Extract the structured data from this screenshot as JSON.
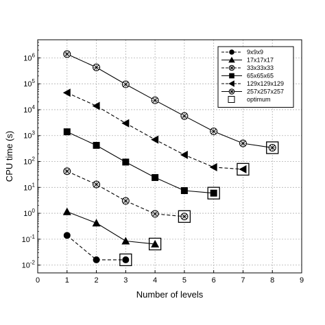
{
  "chart_data": {
    "type": "line",
    "xlabel": "Number of levels",
    "ylabel": "CPU time (s)",
    "x_ticks": [
      "0",
      "1",
      "2",
      "3",
      "4",
      "5",
      "6",
      "7",
      "8",
      "9"
    ],
    "xlim": [
      0,
      9
    ],
    "ylim": [
      0.005,
      5000000
    ],
    "y_scale": "log",
    "y_tick_values": [
      0.01,
      0.1,
      1,
      10,
      100,
      1000,
      10000,
      100000,
      1000000
    ],
    "grid": true,
    "legend_position": "top-right",
    "series": [
      {
        "name": "9x9x9",
        "marker": "circle",
        "dash": true,
        "x": [
          1,
          2,
          3
        ],
        "y": [
          0.14,
          0.016,
          0.016
        ]
      },
      {
        "name": "17x17x17",
        "marker": "triangle-up",
        "dash": false,
        "x": [
          1,
          2,
          3,
          4
        ],
        "y": [
          1.15,
          0.42,
          0.085,
          0.065
        ]
      },
      {
        "name": "33x33x33",
        "marker": "x-circle",
        "dash": true,
        "x": [
          1,
          2,
          3,
          4,
          5
        ],
        "y": [
          42,
          13,
          3.0,
          0.95,
          0.75
        ]
      },
      {
        "name": "65x65x65",
        "marker": "square",
        "dash": false,
        "x": [
          1,
          2,
          3,
          4,
          5,
          6
        ],
        "y": [
          1400,
          420,
          95,
          24,
          7.5,
          6.0
        ]
      },
      {
        "name": "129x129x129",
        "marker": "triangle-left",
        "dash": true,
        "x": [
          1,
          2,
          3,
          4,
          5,
          6,
          7
        ],
        "y": [
          45000,
          14000,
          3000,
          700,
          180,
          60,
          50
        ]
      },
      {
        "name": "257x257x257",
        "marker": "x-circle",
        "dash": false,
        "x": [
          1,
          2,
          3,
          4,
          5,
          6,
          7,
          8
        ],
        "y": [
          1400000,
          430000,
          95000,
          23000,
          5700,
          1450,
          500,
          340
        ]
      }
    ],
    "optimum": {
      "name": "optimum",
      "points": [
        {
          "series": "9x9x9",
          "x": 3,
          "y": 0.016
        },
        {
          "series": "17x17x17",
          "x": 4,
          "y": 0.065
        },
        {
          "series": "33x33x33",
          "x": 5,
          "y": 0.75
        },
        {
          "series": "65x65x65",
          "x": 6,
          "y": 6.0
        },
        {
          "series": "129x129x129",
          "x": 7,
          "y": 50
        },
        {
          "series": "257x257x257",
          "x": 8,
          "y": 340
        }
      ]
    }
  }
}
